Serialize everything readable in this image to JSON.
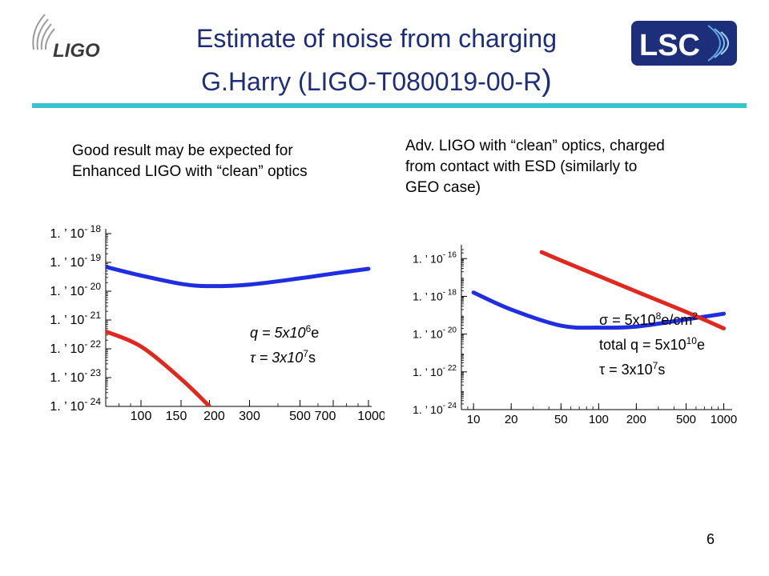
{
  "title": {
    "line1": "Estimate of noise from charging",
    "line2": "G.Harry (LIGO-T080019-00-R",
    "line2_paren": ")"
  },
  "logos": {
    "left": "LIGO",
    "right": "LSC"
  },
  "captions": {
    "left": [
      "Good result may be expected for",
      "Enhanced LIGO with “clean” optics"
    ],
    "right": [
      "Adv. LIGO with “clean” optics, charged",
      "from contact with ESD (similarly to",
      "GEO case)"
    ]
  },
  "annotations": {
    "left": [
      {
        "base": "q = 5x10",
        "sup": "6",
        "tail": "e"
      },
      {
        "base": "τ = 3x10",
        "sup": "7",
        "tail": "s"
      }
    ],
    "right": [
      {
        "base": "σ = 5x10",
        "sup": "8",
        "tail": "e/cm",
        "sup2": "2"
      },
      {
        "base": "total q = 5x10",
        "sup": "10",
        "tail": "e"
      },
      {
        "base": "τ = 3x10",
        "sup": "7",
        "tail": "s"
      }
    ]
  },
  "page_number": "6",
  "colors": {
    "title": "#1d2d78",
    "rule": "#37c4cc",
    "blue_curve": "#1f2fe0",
    "red_curve": "#e0281e",
    "lsc_bg": "#1d2f7a"
  },
  "chart_data": [
    {
      "type": "line",
      "x_scale": "log",
      "y_scale": "log",
      "xlim": [
        70,
        1000
      ],
      "ylim": [
        1e-24,
        1e-18
      ],
      "x_tick_labels": [
        "100",
        "150",
        "200",
        "300",
        "500",
        "700",
        "1000"
      ],
      "x_ticks": [
        100,
        150,
        200,
        300,
        500,
        700,
        1000
      ],
      "y_ticks": [
        -18,
        -19,
        -20,
        -21,
        -22,
        -23,
        -24
      ],
      "y_tick_prefix": "1. ’ 10",
      "series": [
        {
          "color": "blue",
          "x": [
            70,
            100,
            150,
            200,
            300,
            500,
            700,
            1000
          ],
          "y": [
            7e-20,
            3.5e-20,
            1.8e-20,
            1.5e-20,
            1.7e-20,
            2.8e-20,
            4.1e-20,
            6e-20
          ]
        },
        {
          "color": "red",
          "x": [
            70,
            100,
            150,
            200
          ],
          "y": [
            4e-22,
            1.2e-22,
            9e-24,
            1e-24
          ]
        }
      ]
    },
    {
      "type": "line",
      "x_scale": "log",
      "y_scale": "log",
      "xlim": [
        8,
        1100
      ],
      "ylim": [
        1e-24,
        3e-16
      ],
      "x_tick_labels": [
        "10",
        "20",
        "50",
        "100",
        "200",
        "500",
        "1000"
      ],
      "x_ticks": [
        10,
        20,
        50,
        100,
        200,
        500,
        1000
      ],
      "y_ticks": [
        -16,
        -18,
        -20,
        -22,
        -24
      ],
      "y_tick_prefix": "1. ’ 10",
      "series": [
        {
          "color": "blue",
          "x": [
            10,
            20,
            50,
            100,
            200,
            500,
            1000
          ],
          "y": [
            1.6e-18,
            2e-19,
            2.8e-20,
            2.2e-20,
            2.5e-20,
            6e-20,
            1.2e-19
          ]
        },
        {
          "color": "red",
          "x": [
            35,
            50,
            100,
            200,
            500,
            1000
          ],
          "y": [
            2.2e-16,
            8e-17,
            1.2e-17,
            1.8e-18,
            1.5e-19,
            2e-20
          ]
        }
      ]
    }
  ]
}
